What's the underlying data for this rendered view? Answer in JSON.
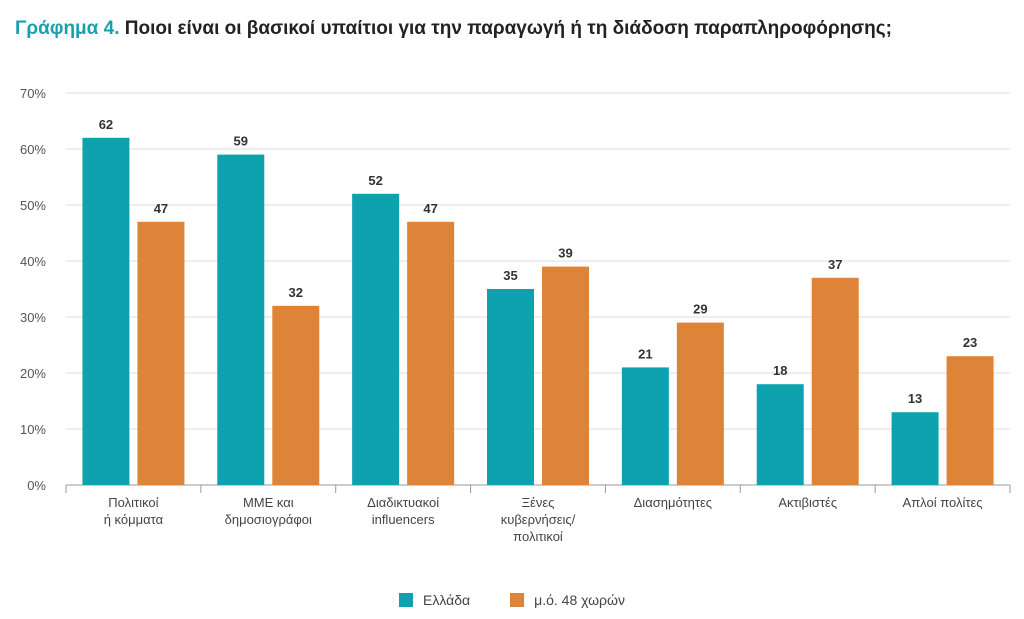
{
  "title": {
    "lead": "Γράφημα 4.",
    "text": "Ποιοι είναι οι βασικοί υπαίτιοι για την παραγωγή ή τη διάδοση παραπληροφόρησης;"
  },
  "colors": {
    "greece": "#0ea2ae",
    "avg48": "#dd8438"
  },
  "chart_data": {
    "type": "bar",
    "categories": [
      [
        "Πολιτικοί",
        "ή κόμματα"
      ],
      [
        "ΜΜΕ και",
        "δημοσιογράφοι"
      ],
      [
        "Διαδικτυακοί",
        "influencers"
      ],
      [
        "Ξένες",
        "κυβερνήσεις/",
        "πολιτικοί"
      ],
      [
        "Διασημότητες"
      ],
      [
        "Ακτιβιστές"
      ],
      [
        "Απλοί πολίτες"
      ]
    ],
    "series": [
      {
        "name": "Ελλάδα",
        "values": [
          62,
          59,
          52,
          35,
          21,
          18,
          13
        ]
      },
      {
        "name": "μ.ό. 48 χωρών",
        "values": [
          47,
          32,
          47,
          39,
          29,
          37,
          23
        ]
      }
    ],
    "y_ticks": [
      "0%",
      "10%",
      "20%",
      "30%",
      "40%",
      "50%",
      "60%",
      "70%"
    ],
    "ylim": [
      0,
      70
    ],
    "grid": true,
    "legend_position": "bottom"
  }
}
